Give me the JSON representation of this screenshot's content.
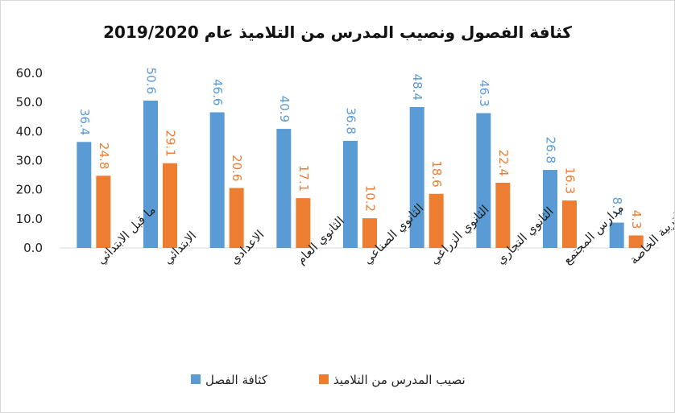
{
  "chart_data": {
    "type": "bar",
    "title": "كثافة الفصول ونصيب المدرس من التلاميذ عام 2019/2020",
    "categories": [
      "ما قبل الابتدائي",
      "الابتدائي",
      "الاعدادي",
      "الثانوي العام",
      "الثانوي الصناعي",
      "الثانوي الزراعي",
      "الثانوي التجاري",
      "مدارس المجتمع",
      "التربية الخاصة"
    ],
    "series": [
      {
        "name": "كثافة الفصل",
        "color": "#5B9BD5",
        "values": [
          36.4,
          50.6,
          46.6,
          40.9,
          36.8,
          48.4,
          46.3,
          26.8,
          8.7
        ]
      },
      {
        "name": "نصيب المدرس من التلاميذ",
        "color": "#ED7D31",
        "values": [
          24.8,
          29.1,
          20.6,
          17.1,
          10.2,
          18.6,
          22.4,
          16.3,
          4.3
        ]
      }
    ],
    "ylim": [
      0,
      60
    ],
    "yticks": [
      "0.0",
      "10.0",
      "20.0",
      "30.0",
      "40.0",
      "50.0",
      "60.0"
    ],
    "grid": false,
    "legend_position": "bottom",
    "data_labels": true
  }
}
